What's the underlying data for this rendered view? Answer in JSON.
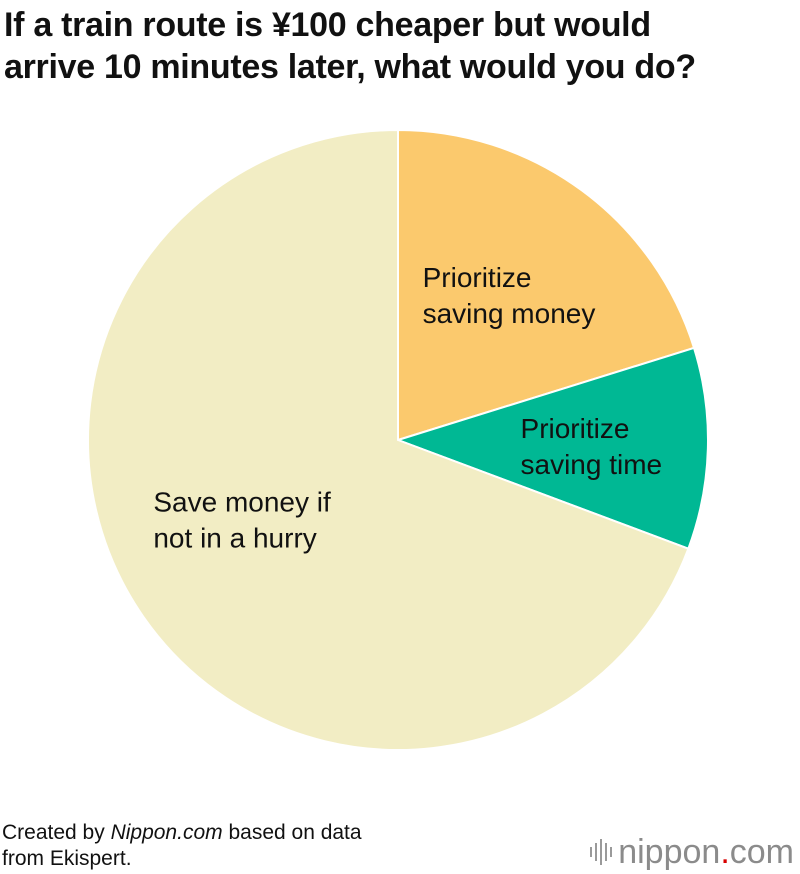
{
  "chart_data": {
    "type": "pie",
    "title_lines": [
      "If a train route is ¥100 cheaper but would",
      "arrive 10 minutes later, what would you do?"
    ],
    "slices": [
      {
        "label_lines": [
          "Prioritize",
          "saving money"
        ],
        "value": 20.2,
        "color": "#fbc96d"
      },
      {
        "label_lines": [
          "Prioritize",
          "saving time"
        ],
        "value": 10.5,
        "color": "#00b894"
      },
      {
        "label_lines": [
          "Save money if",
          "not in a hurry"
        ],
        "value": 69.3,
        "color": "#f2edc4"
      }
    ],
    "start_angle_deg": 0,
    "direction": "clockwise",
    "slice_border_color": "#ffffff"
  },
  "footer": {
    "prefix": "Created by ",
    "site": "Nippon.com",
    "suffix": " based on data",
    "line2": "from Ekispert."
  },
  "brand": {
    "name_part1": "nippon",
    "dot": ".",
    "name_part2": "com",
    "icon": "bars-logo-icon",
    "dot_color": "#d80000"
  }
}
